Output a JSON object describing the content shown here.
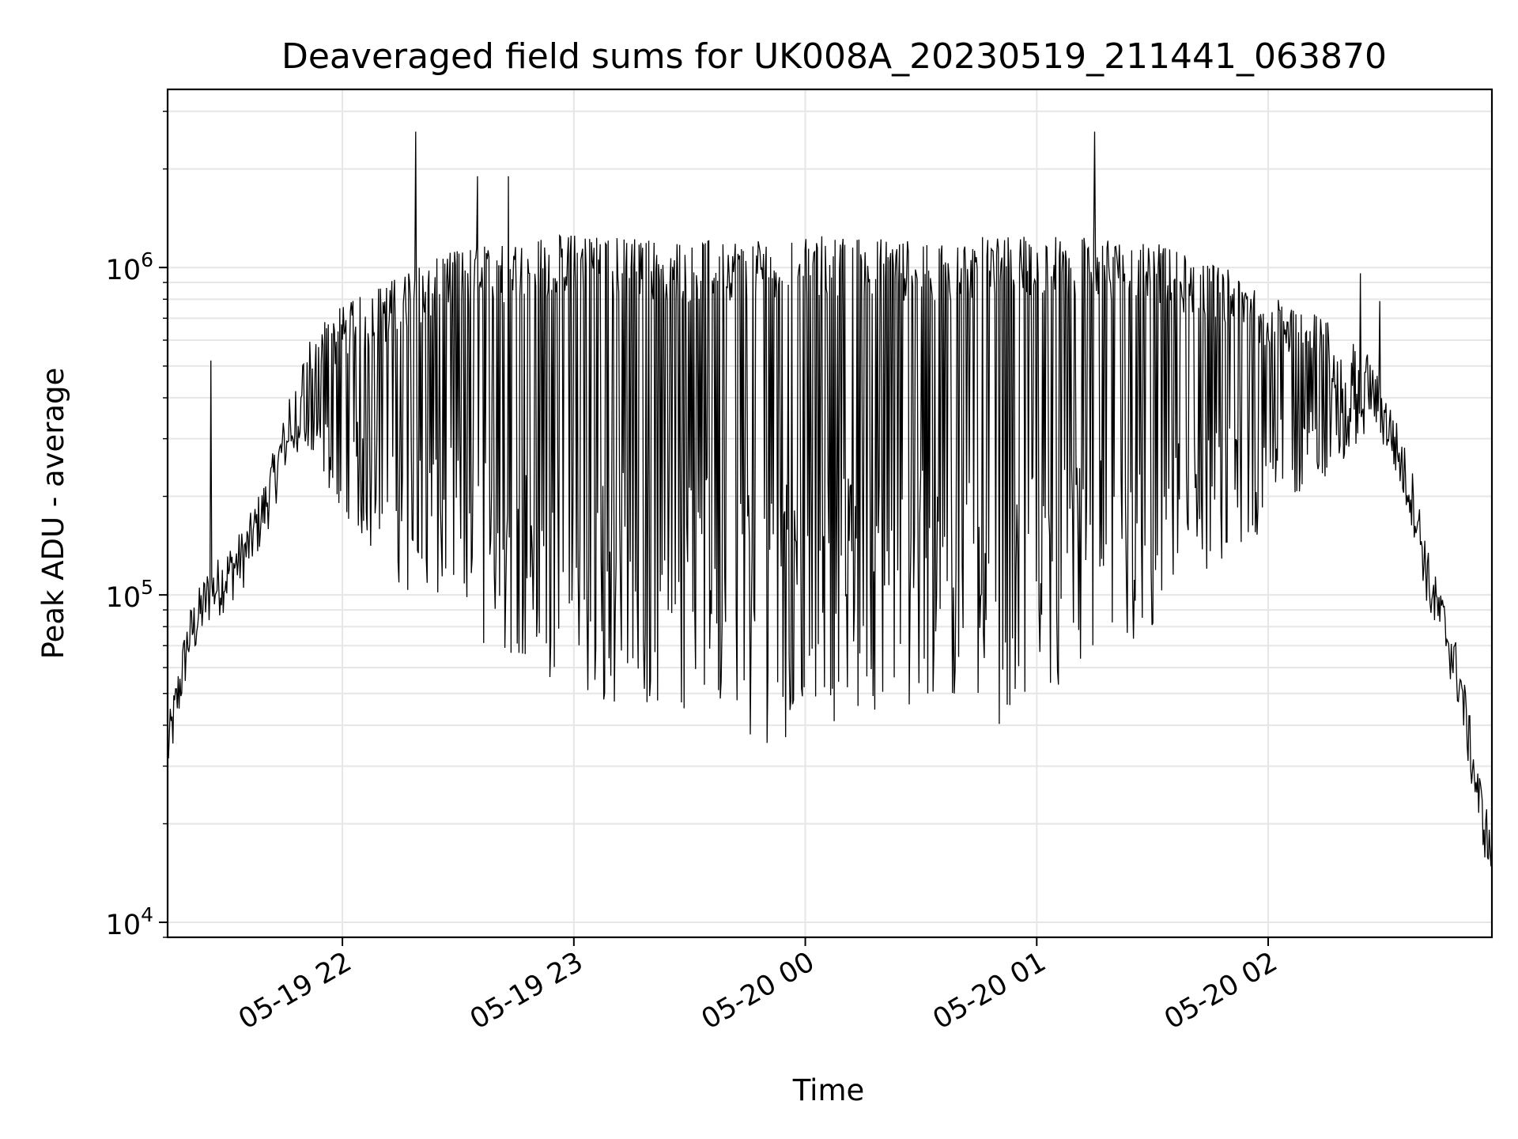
{
  "chart_data": {
    "type": "line",
    "title": "Deaveraged field sums for UK008A_20230519_211441_063870",
    "xlabel": "Time",
    "ylabel": "Peak ADU - average",
    "yscale": "log",
    "xlim": [
      "2023-05-19T21:14:41",
      "2023-05-20T02:58:00"
    ],
    "ylim": [
      9000,
      3500000
    ],
    "grid": true,
    "x_ticks": [
      {
        "label": "05-19 22",
        "value": "2023-05-19T22:00:00"
      },
      {
        "label": "05-19 23",
        "value": "2023-05-19T23:00:00"
      },
      {
        "label": "05-20 00",
        "value": "2023-05-20T00:00:00"
      },
      {
        "label": "05-20 01",
        "value": "2023-05-20T01:00:00"
      },
      {
        "label": "05-20 02",
        "value": "2023-05-20T02:00:00"
      }
    ],
    "y_ticks": [
      {
        "base": "10",
        "exp": "4",
        "value": 10000
      },
      {
        "base": "10",
        "exp": "5",
        "value": 100000
      },
      {
        "base": "10",
        "exp": "6",
        "value": 1000000
      }
    ],
    "series": [
      {
        "color": "#000000",
        "points": [
          [
            "2023-05-19T21:14:41",
            32000
          ],
          [
            "2023-05-19T21:20:00",
            70000
          ],
          [
            "2023-05-19T21:25:00",
            95000
          ],
          [
            "2023-05-19T21:30:00",
            110000
          ],
          [
            "2023-05-19T21:35:00",
            130000
          ],
          [
            "2023-05-19T21:40:00",
            180000
          ],
          [
            "2023-05-19T21:45:00",
            280000
          ],
          [
            "2023-05-19T21:50:00",
            450000
          ],
          [
            "2023-05-19T21:55:00",
            550000
          ],
          [
            "2023-05-19T22:00:00",
            600000
          ],
          [
            "2023-05-19T22:10:00",
            700000
          ],
          [
            "2023-05-19T22:30:00",
            900000
          ],
          [
            "2023-05-19T23:00:00",
            1000000
          ],
          [
            "2023-05-19T23:30:00",
            950000
          ],
          [
            "2023-05-20T00:00:00",
            1000000
          ],
          [
            "2023-05-20T00:30:00",
            950000
          ],
          [
            "2023-05-20T01:00:00",
            1000000
          ],
          [
            "2023-05-20T01:30:00",
            950000
          ],
          [
            "2023-05-20T02:00:00",
            700000
          ],
          [
            "2023-05-20T02:15:00",
            550000
          ],
          [
            "2023-05-20T02:25:00",
            450000
          ],
          [
            "2023-05-20T02:32:00",
            300000
          ],
          [
            "2023-05-20T02:38:00",
            180000
          ],
          [
            "2023-05-20T02:42:00",
            100000
          ],
          [
            "2023-05-20T02:46:00",
            75000
          ],
          [
            "2023-05-20T02:50:00",
            50000
          ],
          [
            "2023-05-20T02:54:00",
            25000
          ],
          [
            "2023-05-20T02:58:00",
            15000
          ]
        ],
        "dips_minimum": [
          [
            "2023-05-19T21:45:00",
            300000
          ],
          [
            "2023-05-19T22:00:00",
            180000
          ],
          [
            "2023-05-19T22:20:00",
            90000
          ],
          [
            "2023-05-19T22:40:00",
            65000
          ],
          [
            "2023-05-19T23:00:00",
            50000
          ],
          [
            "2023-05-19T23:30:00",
            42000
          ],
          [
            "2023-05-19T23:50:00",
            35000
          ],
          [
            "2023-05-20T00:10:00",
            42000
          ],
          [
            "2023-05-20T00:30:00",
            45000
          ],
          [
            "2023-05-20T00:50:00",
            40000
          ],
          [
            "2023-05-20T01:10:00",
            50000
          ],
          [
            "2023-05-20T01:30:00",
            70000
          ],
          [
            "2023-05-20T01:50:00",
            120000
          ],
          [
            "2023-05-20T02:10:00",
            200000
          ],
          [
            "2023-05-20T02:25:00",
            300000
          ]
        ],
        "spikes": [
          [
            "2023-05-19T21:26:00",
            520000
          ],
          [
            "2023-05-19T22:19:00",
            2600000
          ],
          [
            "2023-05-19T22:35:00",
            1900000
          ],
          [
            "2023-05-19T22:43:00",
            1900000
          ],
          [
            "2023-05-20T01:15:00",
            2600000
          ],
          [
            "2023-05-20T02:24:00",
            960000
          ],
          [
            "2023-05-20T02:29:00",
            790000
          ]
        ]
      }
    ]
  }
}
